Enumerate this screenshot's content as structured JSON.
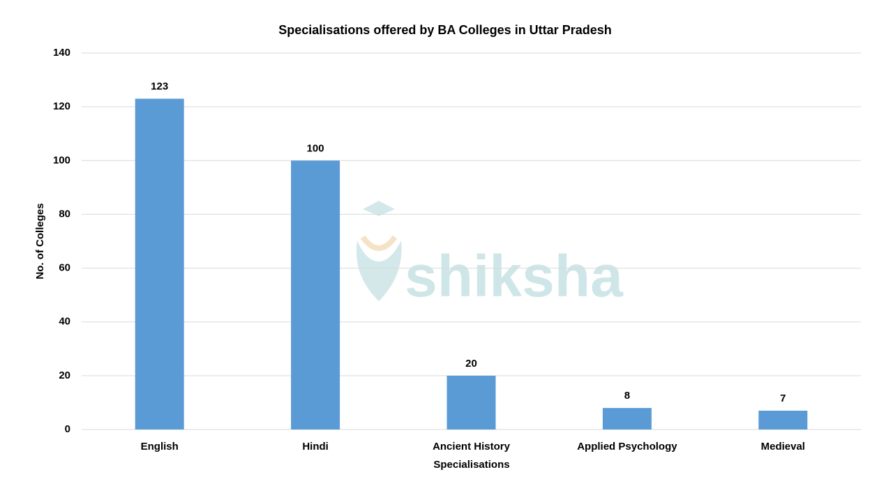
{
  "chart_data": {
    "type": "bar",
    "title": "Specialisations offered by BA Colleges in Uttar Pradesh",
    "x_label": "Specialisations",
    "y_label": "No. of Colleges",
    "categories": [
      "English",
      "Hindi",
      "Ancient History",
      "Applied Psychology",
      "Medieval"
    ],
    "values": [
      123,
      100,
      20,
      8,
      7
    ],
    "color": "#5b9bd5",
    "ylim": [
      0,
      140
    ],
    "yticks": [
      0,
      20,
      40,
      60,
      80,
      100,
      120,
      140
    ],
    "grid": true,
    "watermark": "shiksha"
  }
}
